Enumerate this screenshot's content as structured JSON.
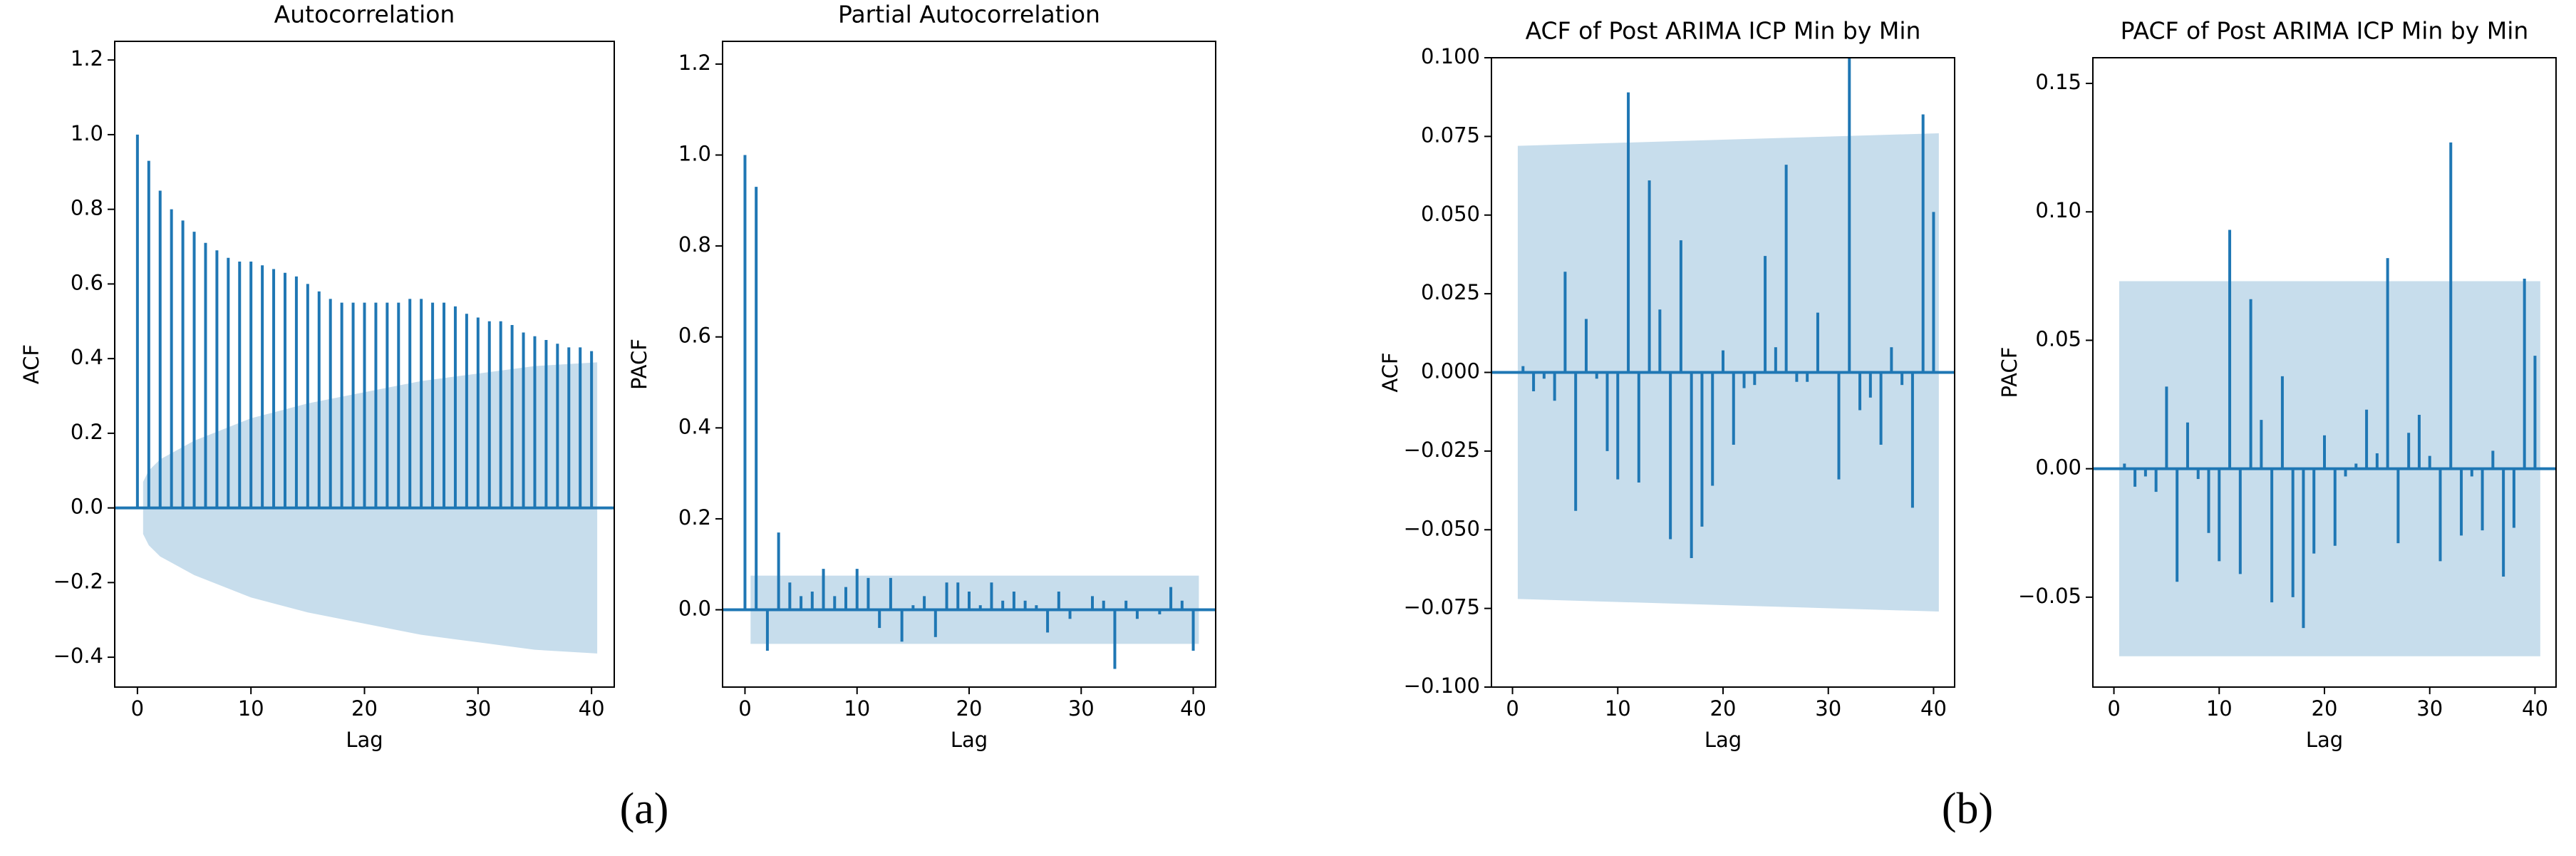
{
  "captions": [
    "(a)",
    "(b)"
  ],
  "chart_data": [
    {
      "type": "stem",
      "title": "Autocorrelation",
      "xlabel": "Lag",
      "ylabel": "ACF",
      "color": "#1f77b4",
      "x": [
        0,
        1,
        2,
        3,
        4,
        5,
        6,
        7,
        8,
        9,
        10,
        11,
        12,
        13,
        14,
        15,
        16,
        17,
        18,
        19,
        20,
        21,
        22,
        23,
        24,
        25,
        26,
        27,
        28,
        29,
        30,
        31,
        32,
        33,
        34,
        35,
        36,
        37,
        38,
        39,
        40
      ],
      "values": [
        1.0,
        0.93,
        0.85,
        0.8,
        0.77,
        0.74,
        0.71,
        0.69,
        0.67,
        0.66,
        0.66,
        0.65,
        0.64,
        0.63,
        0.62,
        0.6,
        0.58,
        0.56,
        0.55,
        0.55,
        0.55,
        0.55,
        0.55,
        0.55,
        0.56,
        0.56,
        0.55,
        0.55,
        0.54,
        0.52,
        0.51,
        0.5,
        0.5,
        0.49,
        0.47,
        0.46,
        0.45,
        0.44,
        0.43,
        0.43,
        0.42
      ],
      "band": {
        "x": [
          0.5,
          1,
          2,
          5,
          10,
          15,
          20,
          25,
          30,
          35,
          40.5
        ],
        "upper": [
          0.07,
          0.1,
          0.13,
          0.18,
          0.24,
          0.28,
          0.31,
          0.34,
          0.36,
          0.38,
          0.39
        ],
        "lower": [
          -0.07,
          -0.1,
          -0.13,
          -0.18,
          -0.24,
          -0.28,
          -0.31,
          -0.34,
          -0.36,
          -0.38,
          -0.39
        ]
      },
      "xlim": [
        -2,
        42
      ],
      "ylim": [
        -0.48,
        1.25
      ],
      "xticks": [
        0,
        10,
        20,
        30,
        40
      ],
      "yticks": [
        {
          "value": -0.4,
          "label": "−0.4"
        },
        {
          "value": -0.2,
          "label": "−0.2"
        },
        {
          "value": 0,
          "label": "0.0"
        },
        {
          "value": 0.2,
          "label": "0.2"
        },
        {
          "value": 0.4,
          "label": "0.4"
        },
        {
          "value": 0.6,
          "label": "0.6"
        },
        {
          "value": 0.8,
          "label": "0.8"
        },
        {
          "value": 1,
          "label": "1.0"
        },
        {
          "value": 1.2,
          "label": "1.2"
        }
      ]
    },
    {
      "type": "stem",
      "title": "Partial Autocorrelation",
      "xlabel": "Lag",
      "ylabel": "PACF",
      "color": "#1f77b4",
      "x": [
        0,
        1,
        2,
        3,
        4,
        5,
        6,
        7,
        8,
        9,
        10,
        11,
        12,
        13,
        14,
        15,
        16,
        17,
        18,
        19,
        20,
        21,
        22,
        23,
        24,
        25,
        26,
        27,
        28,
        29,
        30,
        31,
        32,
        33,
        34,
        35,
        36,
        37,
        38,
        39,
        40
      ],
      "values": [
        1.0,
        0.93,
        -0.09,
        0.17,
        0.06,
        0.03,
        0.04,
        0.09,
        0.03,
        0.05,
        0.09,
        0.07,
        -0.04,
        0.07,
        -0.07,
        0.01,
        0.03,
        -0.06,
        0.06,
        0.06,
        0.04,
        0.01,
        0.06,
        0.02,
        0.04,
        0.02,
        0.01,
        -0.05,
        0.04,
        -0.02,
        0.0,
        0.03,
        0.02,
        -0.13,
        0.02,
        -0.02,
        0.0,
        -0.01,
        0.05,
        0.02,
        -0.09
      ],
      "band": {
        "x": [
          0.5,
          40.5
        ],
        "upper": [
          0.075,
          0.075
        ],
        "lower": [
          -0.075,
          -0.075
        ]
      },
      "xlim": [
        -2,
        42
      ],
      "ylim": [
        -0.17,
        1.25
      ],
      "xticks": [
        0,
        10,
        20,
        30,
        40
      ],
      "yticks": [
        {
          "value": 0,
          "label": "0.0"
        },
        {
          "value": 0.2,
          "label": "0.2"
        },
        {
          "value": 0.4,
          "label": "0.4"
        },
        {
          "value": 0.6,
          "label": "0.6"
        },
        {
          "value": 0.8,
          "label": "0.8"
        },
        {
          "value": 1,
          "label": "1.0"
        },
        {
          "value": 1.2,
          "label": "1.2"
        }
      ]
    },
    {
      "type": "stem",
      "title": "ACF of Post ARIMA ICP Min by Min",
      "xlabel": "Lag",
      "ylabel": "ACF",
      "color": "#1f77b4",
      "x": [
        1,
        2,
        3,
        4,
        5,
        6,
        7,
        8,
        9,
        10,
        11,
        12,
        13,
        14,
        15,
        16,
        17,
        18,
        19,
        20,
        21,
        22,
        23,
        24,
        25,
        26,
        27,
        28,
        29,
        30,
        31,
        32,
        33,
        34,
        35,
        36,
        37,
        38,
        39,
        40
      ],
      "values": [
        0.002,
        -0.006,
        -0.002,
        -0.009,
        0.032,
        -0.044,
        0.017,
        -0.002,
        -0.025,
        -0.034,
        0.089,
        -0.035,
        0.061,
        0.02,
        -0.053,
        0.042,
        -0.059,
        -0.049,
        -0.036,
        0.007,
        -0.023,
        -0.005,
        -0.004,
        0.037,
        0.008,
        0.066,
        -0.003,
        -0.003,
        0.019,
        0.0,
        -0.034,
        0.1,
        -0.012,
        -0.008,
        -0.023,
        0.008,
        -0.004,
        -0.043,
        0.082,
        0.051
      ],
      "band": {
        "x": [
          0.5,
          40.5
        ],
        "upper": [
          0.072,
          0.076
        ],
        "lower": [
          -0.072,
          -0.076
        ]
      },
      "xlim": [
        -2,
        42
      ],
      "ylim": [
        -0.1,
        0.1
      ],
      "xticks": [
        0,
        10,
        20,
        30,
        40
      ],
      "yticks": [
        {
          "value": -0.1,
          "label": "−0.100"
        },
        {
          "value": -0.075,
          "label": "−0.075"
        },
        {
          "value": -0.05,
          "label": "−0.050"
        },
        {
          "value": -0.025,
          "label": "−0.025"
        },
        {
          "value": 0,
          "label": "0.000"
        },
        {
          "value": 0.025,
          "label": "0.025"
        },
        {
          "value": 0.05,
          "label": "0.050"
        },
        {
          "value": 0.075,
          "label": "0.075"
        },
        {
          "value": 0.1,
          "label": "0.100"
        }
      ]
    },
    {
      "type": "stem",
      "title": "PACF of Post ARIMA ICP Min by Min",
      "xlabel": "Lag",
      "ylabel": "PACF",
      "color": "#1f77b4",
      "x": [
        1,
        2,
        3,
        4,
        5,
        6,
        7,
        8,
        9,
        10,
        11,
        12,
        13,
        14,
        15,
        16,
        17,
        18,
        19,
        20,
        21,
        22,
        23,
        24,
        25,
        26,
        27,
        28,
        29,
        30,
        31,
        32,
        33,
        34,
        35,
        36,
        37,
        38,
        39,
        40
      ],
      "values": [
        0.002,
        -0.007,
        -0.003,
        -0.009,
        0.032,
        -0.044,
        0.018,
        -0.004,
        -0.025,
        -0.036,
        0.093,
        -0.041,
        0.066,
        0.019,
        -0.052,
        0.036,
        -0.05,
        -0.062,
        -0.033,
        0.013,
        -0.03,
        -0.003,
        0.002,
        0.023,
        0.006,
        0.082,
        -0.029,
        0.014,
        0.021,
        0.005,
        -0.036,
        0.127,
        -0.026,
        -0.003,
        -0.024,
        0.007,
        -0.042,
        -0.023,
        0.074,
        0.044
      ],
      "band": {
        "x": [
          0.5,
          40.5
        ],
        "upper": [
          0.073,
          0.073
        ],
        "lower": [
          -0.073,
          -0.073
        ]
      },
      "xlim": [
        -2,
        42
      ],
      "ylim": [
        -0.085,
        0.16
      ],
      "xticks": [
        0,
        10,
        20,
        30,
        40
      ],
      "yticks": [
        {
          "value": -0.05,
          "label": "−0.05"
        },
        {
          "value": 0,
          "label": "0.00"
        },
        {
          "value": 0.05,
          "label": "0.05"
        },
        {
          "value": 0.1,
          "label": "0.10"
        },
        {
          "value": 0.15,
          "label": "0.15"
        }
      ]
    }
  ]
}
